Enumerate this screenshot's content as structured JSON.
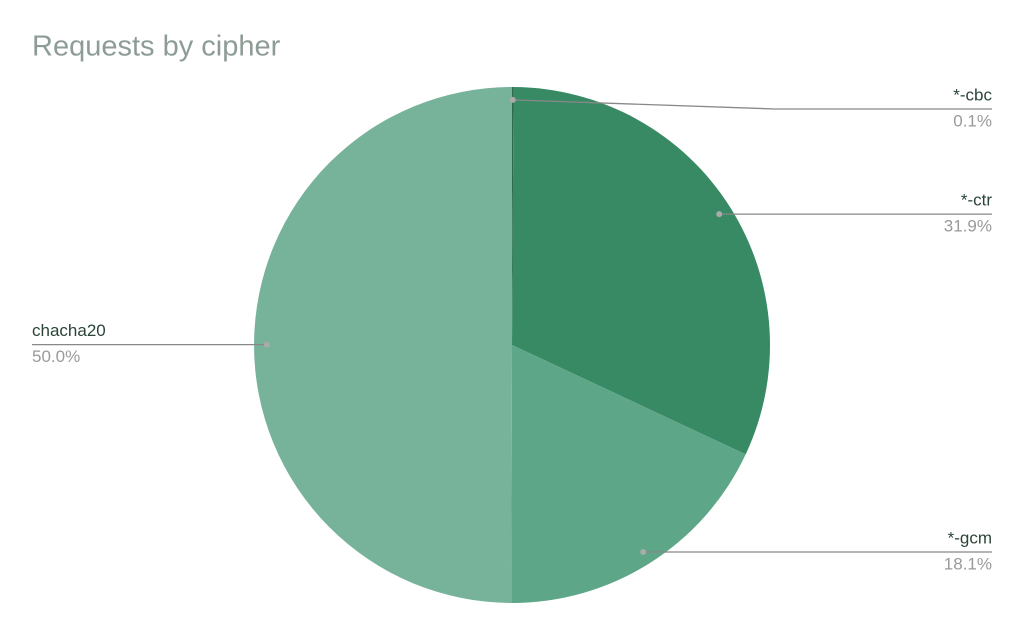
{
  "chart_data": {
    "type": "pie",
    "title": "Requests by cipher",
    "categories": [
      "*-cbc",
      "*-ctr",
      "*-gcm",
      "chacha20"
    ],
    "values": [
      0.1,
      31.9,
      18.1,
      50.0
    ],
    "value_labels": [
      "0.1%",
      "31.9%",
      "18.1%",
      "50.0%"
    ],
    "colors": [
      "#2e6a4d",
      "#388a65",
      "#5ea688",
      "#77b39a"
    ]
  }
}
